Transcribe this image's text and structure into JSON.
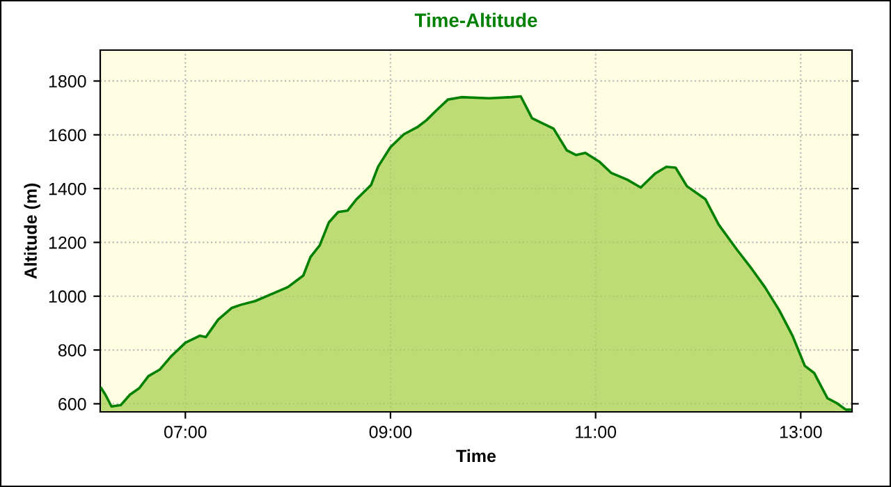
{
  "chart_data": {
    "type": "area",
    "title": "Time-Altitude",
    "xlabel": "Time",
    "ylabel": "Altitude (m)",
    "xlim": [
      6.17,
      13.5
    ],
    "ylim": [
      570,
      1915
    ],
    "xticks": [
      {
        "value": 7,
        "label": "07:00"
      },
      {
        "value": 9,
        "label": "09:00"
      },
      {
        "value": 11,
        "label": "11:00"
      },
      {
        "value": 13,
        "label": "13:00"
      }
    ],
    "yticks": [
      600,
      800,
      1000,
      1200,
      1400,
      1600,
      1800
    ],
    "grid": true,
    "legend": false,
    "line_style": "solid",
    "marker": "none",
    "series": [
      {
        "color": "#008000",
        "x": [
          6.18,
          6.22,
          6.28,
          6.37,
          6.46,
          6.55,
          6.64,
          6.75,
          6.86,
          7.0,
          7.14,
          7.2,
          7.32,
          7.45,
          7.54,
          7.68,
          7.81,
          8.0,
          8.15,
          8.22,
          8.31,
          8.4,
          8.49,
          8.58,
          8.67,
          8.81,
          8.88,
          9.0,
          9.13,
          9.26,
          9.35,
          9.44,
          9.56,
          9.69,
          9.96,
          10.18,
          10.27,
          10.38,
          10.47,
          10.59,
          10.72,
          10.81,
          10.9,
          11.04,
          11.15,
          11.31,
          11.44,
          11.58,
          11.69,
          11.78,
          11.89,
          12.07,
          12.2,
          12.38,
          12.52,
          12.65,
          12.79,
          12.92,
          13.04,
          13.13,
          13.26,
          13.35,
          13.44,
          13.48
        ],
        "values": [
          658,
          634,
          590,
          595,
          634,
          658,
          703,
          727,
          776,
          827,
          853,
          848,
          913,
          956,
          968,
          982,
          1003,
          1034,
          1077,
          1146,
          1189,
          1275,
          1313,
          1318,
          1361,
          1413,
          1482,
          1554,
          1602,
          1628,
          1654,
          1688,
          1731,
          1740,
          1736,
          1740,
          1743,
          1662,
          1645,
          1623,
          1542,
          1525,
          1533,
          1499,
          1459,
          1433,
          1404,
          1456,
          1481,
          1478,
          1409,
          1361,
          1266,
          1172,
          1103,
          1034,
          948,
          853,
          741,
          715,
          621,
          603,
          578,
          578
        ]
      }
    ]
  }
}
